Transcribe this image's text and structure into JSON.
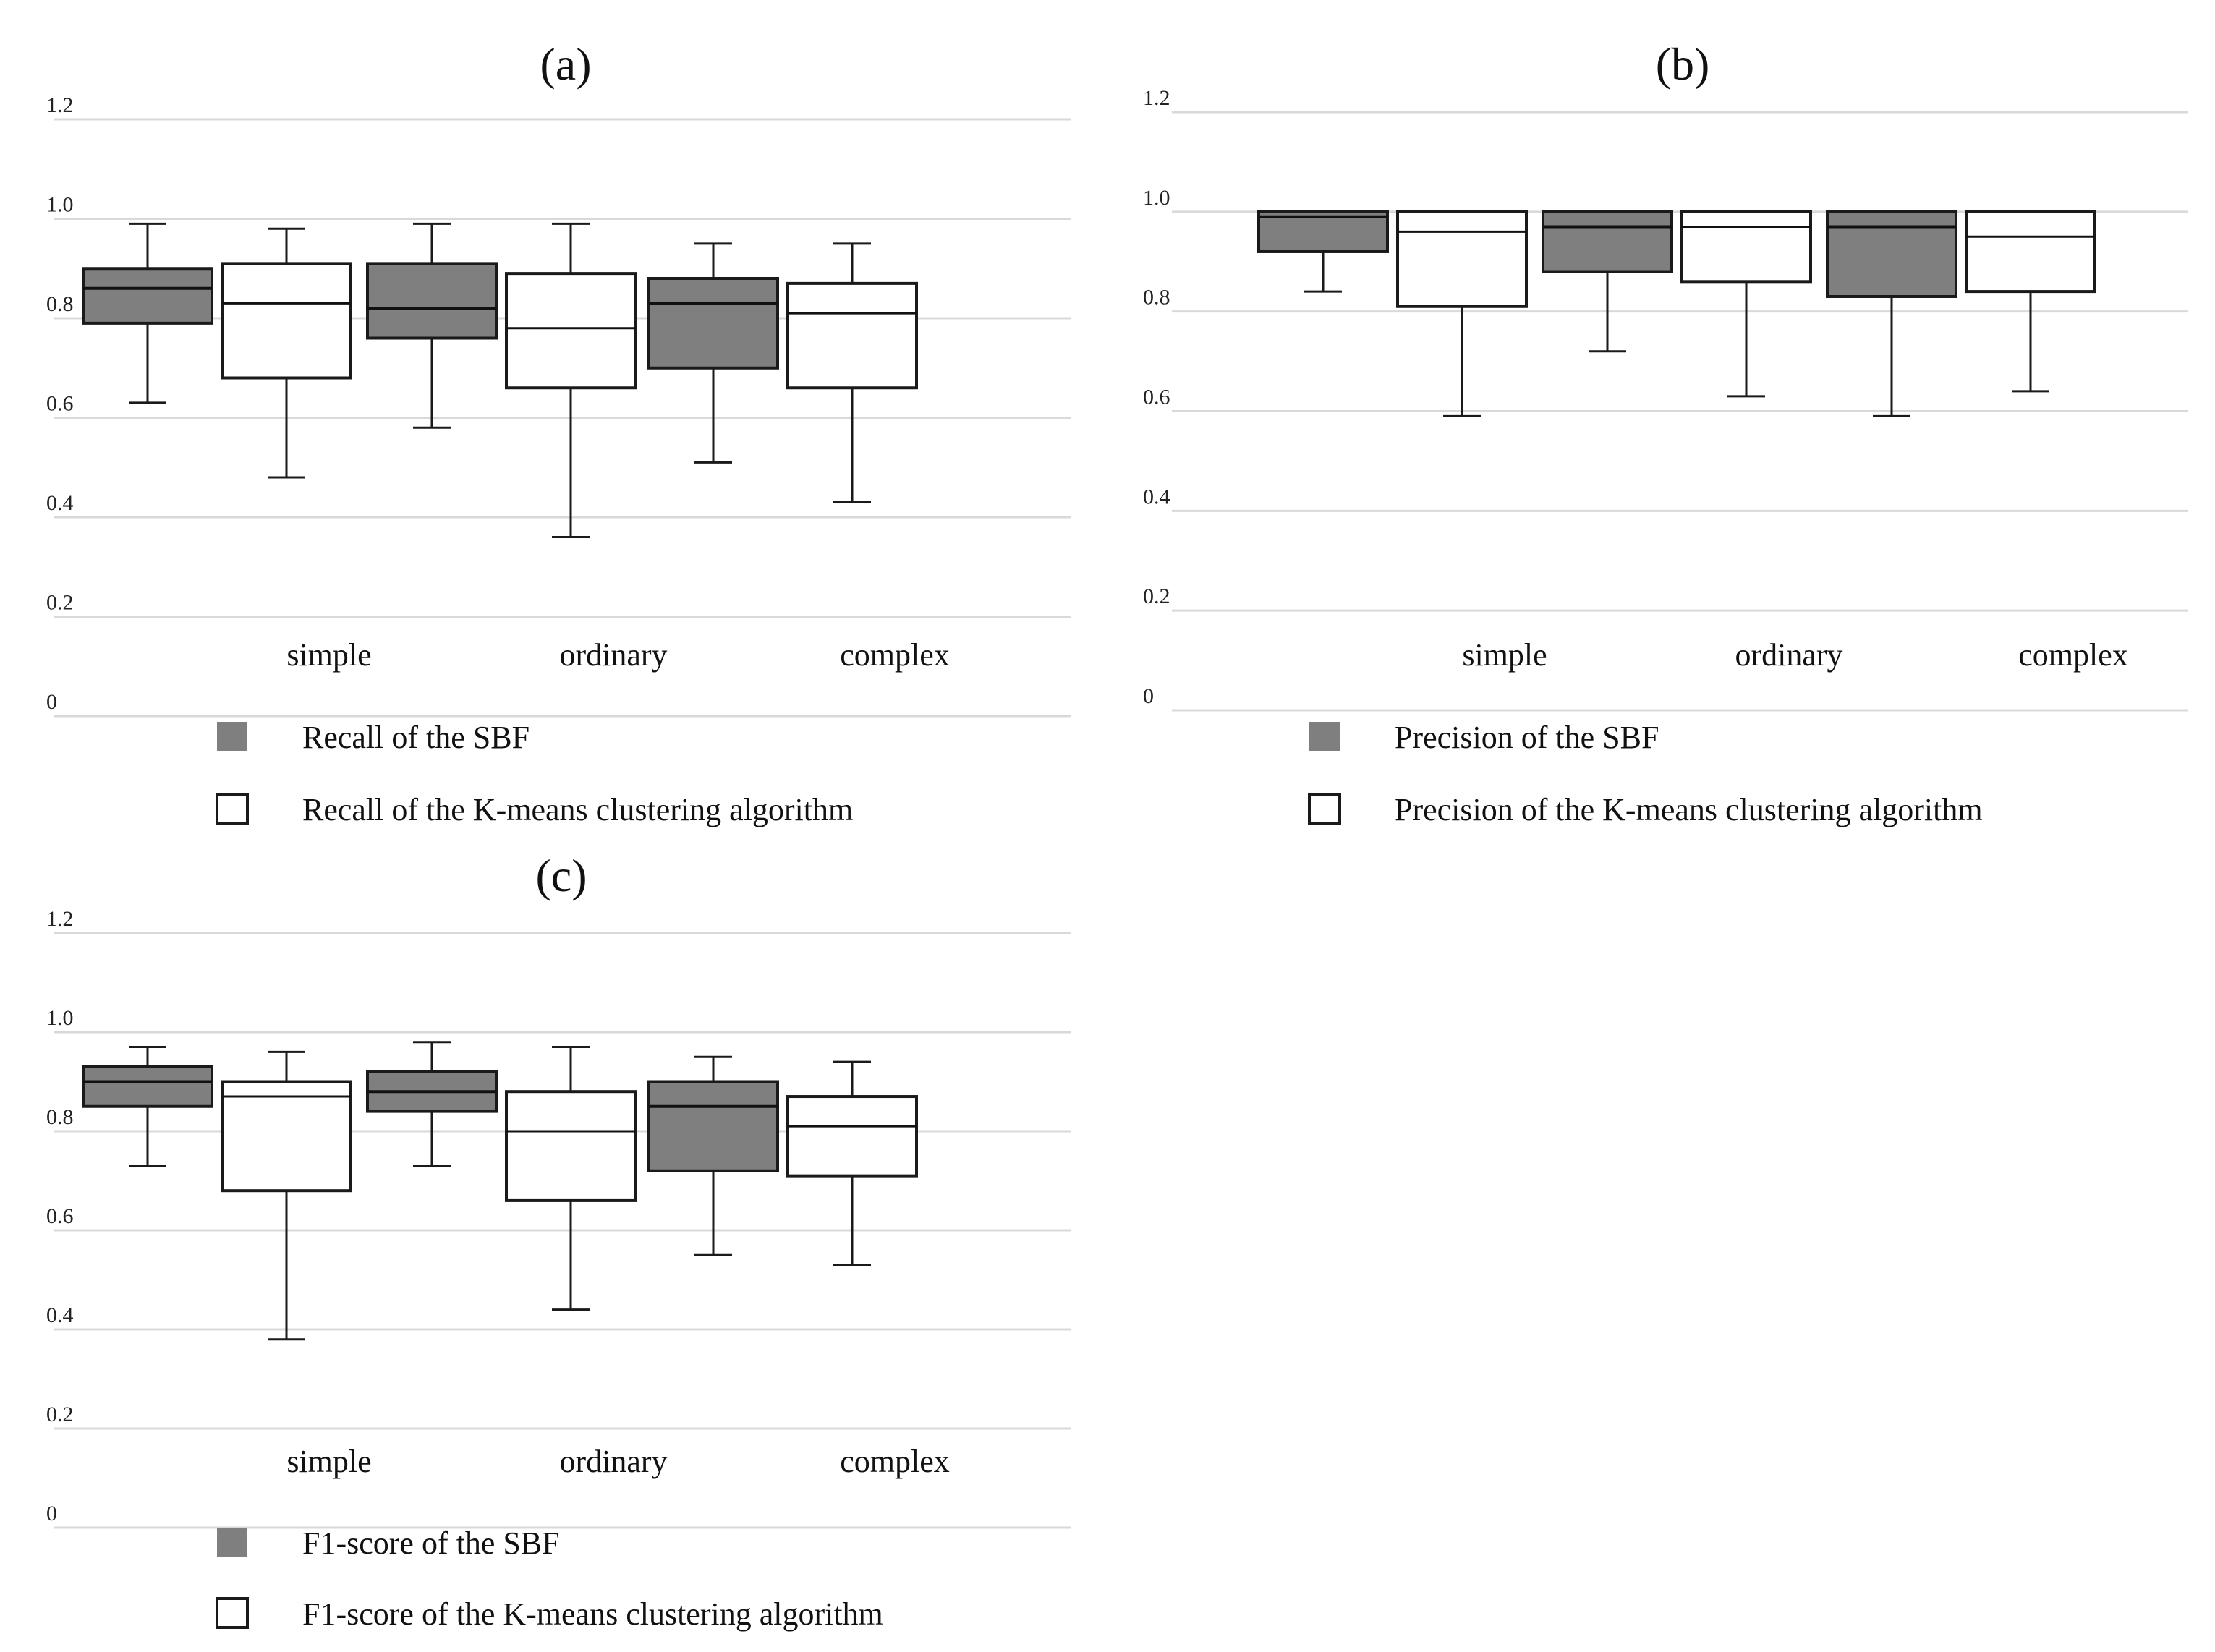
{
  "colors": {
    "sbf": "#7f7f7f",
    "kmeans": "#ffffff",
    "grid": "#d9d9d9",
    "stroke": "#1a1a1a"
  },
  "chart_data": [
    {
      "type": "box",
      "title": "(a)",
      "ylim": [
        0,
        1.2
      ],
      "yticks": [
        {
          "value": 0,
          "label": "0"
        },
        {
          "value": 0.2,
          "label": "0.2"
        },
        {
          "value": 0.4,
          "label": "0.4"
        },
        {
          "value": 0.6,
          "label": "0.6"
        },
        {
          "value": 0.8,
          "label": "0.8"
        },
        {
          "value": 1.0,
          "label": "1.0"
        },
        {
          "value": 1.2,
          "label": "1.2"
        }
      ],
      "categories": [
        "simple",
        "ordinary",
        "complex"
      ],
      "series": [
        {
          "name": "Recall of the SBF",
          "key": "sbf",
          "boxes": [
            {
              "min": 0.63,
              "q1": 0.79,
              "median": 0.86,
              "q3": 0.9,
              "max": 0.99
            },
            {
              "min": 0.58,
              "q1": 0.76,
              "median": 0.82,
              "q3": 0.91,
              "max": 0.99
            },
            {
              "min": 0.51,
              "q1": 0.7,
              "median": 0.83,
              "q3": 0.88,
              "max": 0.95
            }
          ]
        },
        {
          "name": "Recall of the K-means clustering algorithm",
          "key": "kmeans",
          "boxes": [
            {
              "min": 0.48,
              "q1": 0.68,
              "median": 0.83,
              "q3": 0.91,
              "max": 0.98
            },
            {
              "min": 0.36,
              "q1": 0.66,
              "median": 0.78,
              "q3": 0.89,
              "max": 0.99
            },
            {
              "min": 0.43,
              "q1": 0.66,
              "median": 0.81,
              "q3": 0.87,
              "max": 0.95
            }
          ]
        }
      ]
    },
    {
      "type": "box",
      "title": "(b)",
      "ylim": [
        0,
        1.2
      ],
      "yticks": [
        {
          "value": 0,
          "label": "0"
        },
        {
          "value": 0.2,
          "label": "0.2"
        },
        {
          "value": 0.4,
          "label": "0.4"
        },
        {
          "value": 0.6,
          "label": "0.6"
        },
        {
          "value": 0.8,
          "label": "0.8"
        },
        {
          "value": 1.0,
          "label": "1.0"
        },
        {
          "value": 1.2,
          "label": "1.2"
        }
      ],
      "categories": [
        "simple",
        "ordinary",
        "complex"
      ],
      "series": [
        {
          "name": "Precision of the SBF",
          "key": "sbf",
          "boxes": [
            {
              "min": 0.84,
              "q1": 0.92,
              "median": 0.99,
              "q3": 1.0,
              "max": 1.0
            },
            {
              "min": 0.72,
              "q1": 0.88,
              "median": 0.97,
              "q3": 1.0,
              "max": 1.0
            },
            {
              "min": 0.59,
              "q1": 0.83,
              "median": 0.97,
              "q3": 1.0,
              "max": 1.0
            }
          ]
        },
        {
          "name": "Precision of the K-means clustering algorithm",
          "key": "kmeans",
          "boxes": [
            {
              "min": 0.59,
              "q1": 0.81,
              "median": 0.96,
              "q3": 1.0,
              "max": 1.0
            },
            {
              "min": 0.63,
              "q1": 0.86,
              "median": 0.97,
              "q3": 1.0,
              "max": 1.0
            },
            {
              "min": 0.64,
              "q1": 0.84,
              "median": 0.95,
              "q3": 1.0,
              "max": 1.0
            }
          ]
        }
      ]
    },
    {
      "type": "box",
      "title": "(c)",
      "ylim": [
        0,
        1.2
      ],
      "yticks": [
        {
          "value": 0,
          "label": "0"
        },
        {
          "value": 0.2,
          "label": "0.2"
        },
        {
          "value": 0.4,
          "label": "0.4"
        },
        {
          "value": 0.6,
          "label": "0.6"
        },
        {
          "value": 0.8,
          "label": "0.8"
        },
        {
          "value": 1.0,
          "label": "1.0"
        },
        {
          "value": 1.2,
          "label": "1.2"
        }
      ],
      "categories": [
        "simple",
        "ordinary",
        "complex"
      ],
      "series": [
        {
          "name": "F1-score of the SBF",
          "key": "sbf",
          "boxes": [
            {
              "min": 0.73,
              "q1": 0.85,
              "median": 0.9,
              "q3": 0.93,
              "max": 0.97
            },
            {
              "min": 0.73,
              "q1": 0.84,
              "median": 0.88,
              "q3": 0.92,
              "max": 0.98
            },
            {
              "min": 0.55,
              "q1": 0.72,
              "median": 0.85,
              "q3": 0.9,
              "max": 0.95
            }
          ]
        },
        {
          "name": "F1-score of the K-means clustering algorithm",
          "key": "kmeans",
          "boxes": [
            {
              "min": 0.38,
              "q1": 0.68,
              "median": 0.87,
              "q3": 0.9,
              "max": 0.96
            },
            {
              "min": 0.44,
              "q1": 0.66,
              "median": 0.8,
              "q3": 0.88,
              "max": 0.97
            },
            {
              "min": 0.53,
              "q1": 0.71,
              "median": 0.81,
              "q3": 0.87,
              "max": 0.94
            }
          ]
        }
      ]
    }
  ]
}
